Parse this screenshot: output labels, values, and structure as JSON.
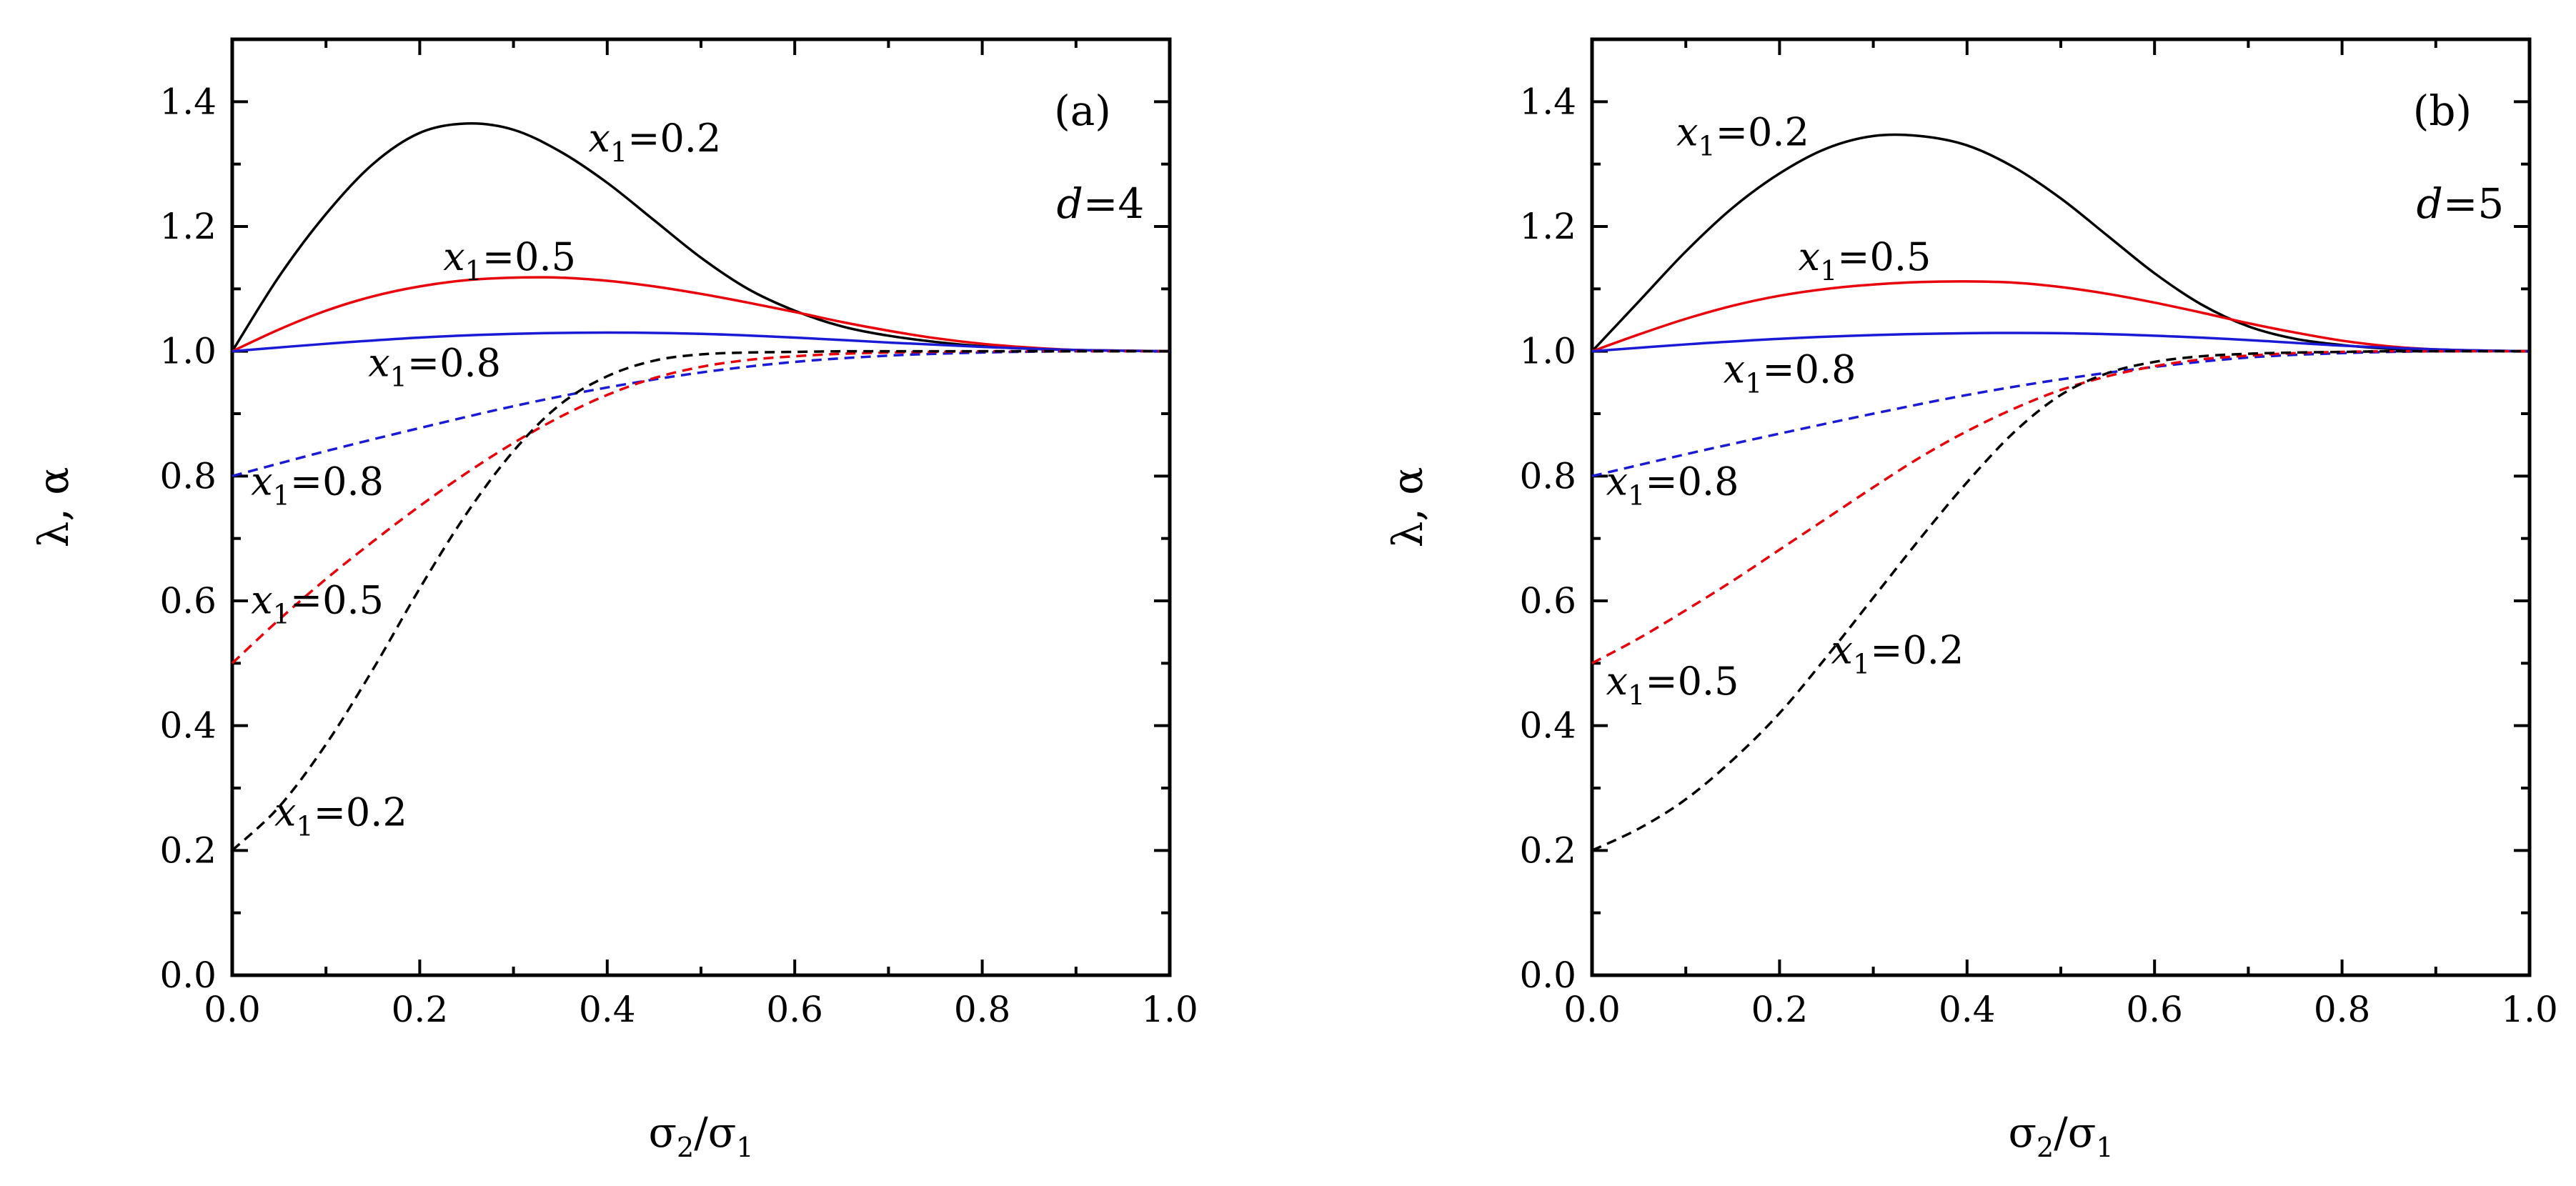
{
  "chart_data": [
    {
      "type": "line",
      "panel_label": "(a)",
      "param_text": "=4",
      "param_symbol": "d",
      "xlabel": "σ2/σ1",
      "xlabel_main": "σ",
      "xlabel_sub1": "2",
      "xlabel_slash": "/σ",
      "xlabel_sub2": "1",
      "ylabel": "λ, α",
      "xlim": [
        0,
        1
      ],
      "ylim": [
        0,
        1.5
      ],
      "xticks": [
        "0.0",
        "0.2",
        "0.4",
        "0.6",
        "0.8",
        "1.0"
      ],
      "yticks": [
        "0.0",
        "0.2",
        "0.4",
        "0.6",
        "0.8",
        "1.0",
        "1.2",
        "1.4"
      ],
      "series": [
        {
          "name": "λ, x1=0.2",
          "style": "solid",
          "color": "#000000",
          "x": [
            0,
            0.05,
            0.1,
            0.15,
            0.2,
            0.25,
            0.3,
            0.35,
            0.4,
            0.45,
            0.5,
            0.55,
            0.6,
            0.65,
            0.7,
            0.75,
            0.8,
            0.85,
            0.9,
            0.95,
            1.0
          ],
          "y": [
            1.0,
            1.12,
            1.22,
            1.3,
            1.35,
            1.365,
            1.355,
            1.32,
            1.27,
            1.21,
            1.15,
            1.1,
            1.065,
            1.04,
            1.025,
            1.015,
            1.008,
            1.004,
            1.002,
            1.001,
            1.0
          ]
        },
        {
          "name": "λ, x1=0.5",
          "style": "solid",
          "color": "#e8000b",
          "x": [
            0,
            0.05,
            0.1,
            0.15,
            0.2,
            0.25,
            0.3,
            0.35,
            0.4,
            0.45,
            0.5,
            0.55,
            0.6,
            0.65,
            0.7,
            0.75,
            0.8,
            0.85,
            0.9,
            0.95,
            1.0
          ],
          "y": [
            1.0,
            1.035,
            1.065,
            1.088,
            1.104,
            1.114,
            1.118,
            1.118,
            1.113,
            1.104,
            1.092,
            1.078,
            1.063,
            1.047,
            1.033,
            1.021,
            1.012,
            1.006,
            1.002,
            1.001,
            1.0
          ]
        },
        {
          "name": "λ, x1=0.8",
          "style": "solid",
          "color": "#1a1ad6",
          "x": [
            0,
            0.1,
            0.2,
            0.3,
            0.4,
            0.5,
            0.6,
            0.7,
            0.8,
            0.9,
            1.0
          ],
          "y": [
            1.0,
            1.012,
            1.022,
            1.028,
            1.03,
            1.028,
            1.022,
            1.014,
            1.007,
            1.002,
            1.0
          ]
        },
        {
          "name": "α, x1=0.8",
          "style": "dashed",
          "color": "#1a1ad6",
          "x": [
            0,
            0.1,
            0.2,
            0.3,
            0.4,
            0.5,
            0.6,
            0.7,
            0.8,
            0.9,
            1.0
          ],
          "y": [
            0.8,
            0.84,
            0.877,
            0.912,
            0.942,
            0.966,
            0.983,
            0.993,
            0.998,
            1.0,
            1.0
          ]
        },
        {
          "name": "α, x1=0.5",
          "style": "dashed",
          "color": "#e8000b",
          "x": [
            0,
            0.05,
            0.1,
            0.15,
            0.2,
            0.25,
            0.3,
            0.35,
            0.4,
            0.45,
            0.5,
            0.55,
            0.6,
            0.65,
            0.7,
            0.75,
            0.8,
            0.85,
            0.9,
            0.95,
            1.0
          ],
          "y": [
            0.5,
            0.57,
            0.635,
            0.695,
            0.752,
            0.805,
            0.853,
            0.895,
            0.93,
            0.957,
            0.975,
            0.986,
            0.992,
            0.996,
            0.998,
            0.999,
            1.0,
            1.0,
            1.0,
            1.0,
            1.0
          ]
        },
        {
          "name": "α, x1=0.2",
          "style": "dashed",
          "color": "#000000",
          "x": [
            0,
            0.05,
            0.1,
            0.15,
            0.2,
            0.25,
            0.3,
            0.35,
            0.4,
            0.45,
            0.5,
            0.55,
            0.6,
            0.65,
            0.7,
            0.75,
            0.8,
            0.85,
            0.9,
            0.95,
            1.0
          ],
          "y": [
            0.2,
            0.27,
            0.37,
            0.49,
            0.62,
            0.74,
            0.84,
            0.915,
            0.96,
            0.985,
            0.995,
            0.998,
            0.999,
            1.0,
            1.0,
            1.0,
            1.0,
            1.0,
            1.0,
            1.0,
            1.0
          ]
        }
      ],
      "annotations": [
        {
          "text_var": "x",
          "sub": "1",
          "value": "=0.2",
          "x": 0.38,
          "y": 1.32
        },
        {
          "text_var": "x",
          "sub": "1",
          "value": "=0.5",
          "x": 0.225,
          "y": 1.13
        },
        {
          "text_var": "x",
          "sub": "1",
          "value": "=0.8",
          "x": 0.145,
          "y": 0.96
        },
        {
          "text_var": "x",
          "sub": "1",
          "value": "=0.8",
          "x": 0.02,
          "y": 0.77
        },
        {
          "text_var": "x",
          "sub": "1",
          "value": "=0.5",
          "x": 0.02,
          "y": 0.58
        },
        {
          "text_var": "x",
          "sub": "1",
          "value": "=0.2",
          "x": 0.045,
          "y": 0.24
        }
      ]
    },
    {
      "type": "line",
      "panel_label": "(b)",
      "param_text": "=5",
      "param_symbol": "d",
      "xlabel": "σ2/σ1",
      "xlabel_main": "σ",
      "xlabel_sub1": "2",
      "xlabel_slash": "/σ",
      "xlabel_sub2": "1",
      "ylabel": "λ, α",
      "xlim": [
        0,
        1
      ],
      "ylim": [
        0,
        1.5
      ],
      "xticks": [
        "0.0",
        "0.2",
        "0.4",
        "0.6",
        "0.8",
        "1.0"
      ],
      "yticks": [
        "0.0",
        "0.2",
        "0.4",
        "0.6",
        "0.8",
        "1.0",
        "1.2",
        "1.4"
      ],
      "series": [
        {
          "name": "λ, x1=0.2",
          "style": "solid",
          "color": "#000000",
          "x": [
            0,
            0.05,
            0.1,
            0.15,
            0.2,
            0.25,
            0.3,
            0.35,
            0.4,
            0.45,
            0.5,
            0.55,
            0.6,
            0.65,
            0.7,
            0.75,
            0.8,
            0.85,
            0.9,
            0.95,
            1.0
          ],
          "y": [
            1.0,
            1.08,
            1.16,
            1.23,
            1.285,
            1.325,
            1.345,
            1.345,
            1.33,
            1.295,
            1.245,
            1.185,
            1.125,
            1.075,
            1.04,
            1.02,
            1.01,
            1.004,
            1.002,
            1.001,
            1.0
          ]
        },
        {
          "name": "λ, x1=0.5",
          "style": "solid",
          "color": "#e8000b",
          "x": [
            0,
            0.05,
            0.1,
            0.15,
            0.2,
            0.25,
            0.3,
            0.35,
            0.4,
            0.45,
            0.5,
            0.55,
            0.6,
            0.65,
            0.7,
            0.75,
            0.8,
            0.85,
            0.9,
            0.95,
            1.0
          ],
          "y": [
            1.0,
            1.027,
            1.052,
            1.073,
            1.089,
            1.1,
            1.107,
            1.111,
            1.112,
            1.11,
            1.103,
            1.092,
            1.078,
            1.062,
            1.045,
            1.03,
            1.017,
            1.008,
            1.003,
            1.001,
            1.0
          ]
        },
        {
          "name": "λ, x1=0.8",
          "style": "solid",
          "color": "#1a1ad6",
          "x": [
            0,
            0.1,
            0.2,
            0.3,
            0.4,
            0.5,
            0.6,
            0.7,
            0.8,
            0.9,
            1.0
          ],
          "y": [
            1.0,
            1.011,
            1.02,
            1.026,
            1.029,
            1.029,
            1.025,
            1.018,
            1.009,
            1.003,
            1.0
          ]
        },
        {
          "name": "α, x1=0.8",
          "style": "dashed",
          "color": "#1a1ad6",
          "x": [
            0,
            0.1,
            0.2,
            0.3,
            0.4,
            0.5,
            0.6,
            0.7,
            0.8,
            0.9,
            1.0
          ],
          "y": [
            0.8,
            0.835,
            0.868,
            0.9,
            0.93,
            0.955,
            0.975,
            0.99,
            0.997,
            1.0,
            1.0
          ]
        },
        {
          "name": "α, x1=0.5",
          "style": "dashed",
          "color": "#e8000b",
          "x": [
            0,
            0.05,
            0.1,
            0.15,
            0.2,
            0.25,
            0.3,
            0.35,
            0.4,
            0.45,
            0.5,
            0.55,
            0.6,
            0.65,
            0.7,
            0.75,
            0.8,
            0.85,
            0.9,
            0.95,
            1.0
          ],
          "y": [
            0.5,
            0.54,
            0.585,
            0.632,
            0.682,
            0.732,
            0.782,
            0.83,
            0.872,
            0.908,
            0.938,
            0.96,
            0.976,
            0.987,
            0.993,
            0.997,
            0.999,
            1.0,
            1.0,
            1.0,
            1.0
          ]
        },
        {
          "name": "α, x1=0.2",
          "style": "dashed",
          "color": "#000000",
          "x": [
            0,
            0.05,
            0.1,
            0.15,
            0.2,
            0.25,
            0.3,
            0.35,
            0.4,
            0.45,
            0.5,
            0.55,
            0.6,
            0.65,
            0.7,
            0.75,
            0.8,
            0.85,
            0.9,
            0.95,
            1.0
          ],
          "y": [
            0.2,
            0.235,
            0.282,
            0.345,
            0.42,
            0.51,
            0.605,
            0.7,
            0.79,
            0.87,
            0.93,
            0.965,
            0.983,
            0.992,
            0.996,
            0.998,
            0.999,
            1.0,
            1.0,
            1.0,
            1.0
          ]
        }
      ],
      "annotations": [
        {
          "text_var": "x",
          "sub": "1",
          "value": "=0.2",
          "x": 0.09,
          "y": 1.33
        },
        {
          "text_var": "x",
          "sub": "1",
          "value": "=0.5",
          "x": 0.22,
          "y": 1.13
        },
        {
          "text_var": "x",
          "sub": "1",
          "value": "=0.8",
          "x": 0.14,
          "y": 0.95
        },
        {
          "text_var": "x",
          "sub": "1",
          "value": "=0.8",
          "x": 0.015,
          "y": 0.77
        },
        {
          "text_var": "x",
          "sub": "1",
          "value": "=0.5",
          "x": 0.015,
          "y": 0.45
        },
        {
          "text_var": "x",
          "sub": "1",
          "value": "=0.2",
          "x": 0.255,
          "y": 0.5
        }
      ]
    }
  ]
}
